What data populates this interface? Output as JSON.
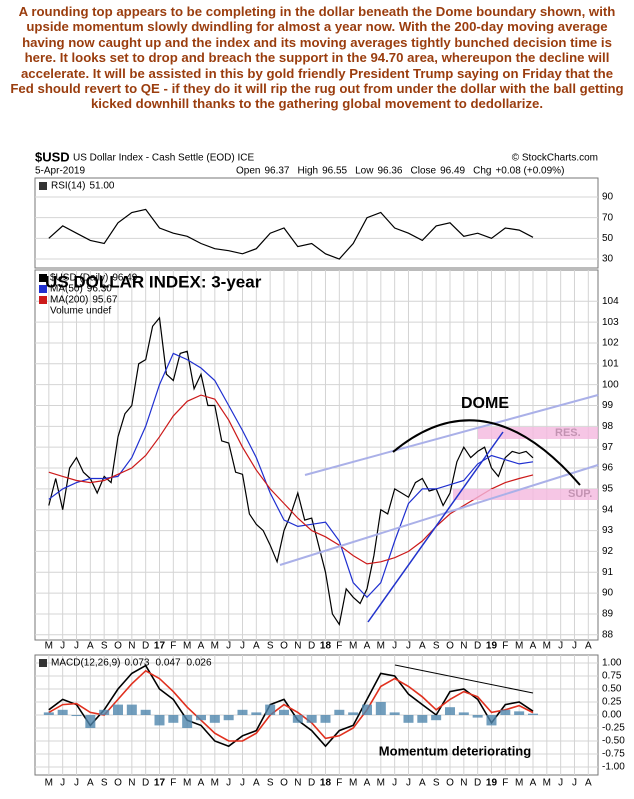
{
  "commentary": "A rounding top appears to be completing in the dollar beneath the Dome boundary shown, with upside momentum slowly dwindling for almost a year now. With the 200-day moving average having now caught up and the index and its moving averages tightly bunched decision time is here. It looks set to drop and breach the support in the 94.70 area, whereupon the decline will accelerate. It will be assisted in this by gold friendly President Trump saying on Friday that the Fed should revert to QE - if they do it will rip the rug out from under the dollar with the ball getting kicked downhill thanks to the gathering global movement to dedollarize.",
  "header": {
    "symbol": "$USD",
    "description": "US Dollar Index - Cash Settle (EOD) ICE",
    "source": "© StockCharts.com",
    "date": "5-Apr-2019",
    "quote": [
      {
        "label": "Open",
        "value": "96.37"
      },
      {
        "label": "High",
        "value": "96.55"
      },
      {
        "label": "Low",
        "value": "96.36"
      },
      {
        "label": "Close",
        "value": "96.49"
      },
      {
        "label": "Chg",
        "value": "+0.08 (+0.09%)"
      }
    ]
  },
  "chart_data": [
    {
      "type": "line",
      "legend_layout": "row",
      "grid": true,
      "xlim": [
        -1,
        39.7
      ],
      "ylim": [
        21.3,
        108.4
      ],
      "yticks": [
        90,
        70,
        50,
        30
      ],
      "series": [
        {
          "name": "RSI(14)",
          "latest": "51.00",
          "color": "#000000",
          "x": [
            0,
            1,
            2,
            3,
            4,
            5,
            6,
            7,
            8,
            9,
            10,
            11,
            12,
            13,
            14,
            15,
            16,
            17,
            18,
            19,
            20,
            21,
            22,
            23,
            24,
            25,
            26,
            27,
            28,
            29,
            30,
            31,
            32,
            33,
            34,
            35
          ],
          "values": [
            50,
            62,
            55,
            48,
            45,
            65,
            75,
            78,
            60,
            55,
            52,
            45,
            40,
            38,
            35,
            40,
            55,
            60,
            42,
            45,
            35,
            30,
            45,
            70,
            75,
            60,
            55,
            48,
            62,
            65,
            52,
            55,
            50,
            60,
            58,
            51
          ]
        }
      ]
    },
    {
      "type": "line",
      "legend_layout": "column",
      "grid": true,
      "title": "US DOLLAR INDEX: 3-year",
      "legend_note": "Volume undef",
      "annotations": {
        "dome": "DOME",
        "resistance": "RES.",
        "support": "SUP."
      },
      "xlim": [
        -1,
        39.7
      ],
      "ylim": [
        87.75,
        105.5
      ],
      "yticks": [
        88,
        89,
        90,
        91,
        92,
        93,
        94,
        95,
        96,
        97,
        98,
        99,
        100,
        101,
        102,
        103,
        104
      ],
      "xticks": [
        {
          "value": 0,
          "label": "M"
        },
        {
          "value": 1,
          "label": "J"
        },
        {
          "value": 2,
          "label": "J"
        },
        {
          "value": 3,
          "label": "A"
        },
        {
          "value": 4,
          "label": "S"
        },
        {
          "value": 5,
          "label": "O"
        },
        {
          "value": 6,
          "label": "N"
        },
        {
          "value": 7,
          "label": "D"
        },
        {
          "value": 8,
          "label": "17"
        },
        {
          "value": 9,
          "label": "F"
        },
        {
          "value": 10,
          "label": "M"
        },
        {
          "value": 11,
          "label": "A"
        },
        {
          "value": 12,
          "label": "M"
        },
        {
          "value": 13,
          "label": "J"
        },
        {
          "value": 14,
          "label": "J"
        },
        {
          "value": 15,
          "label": "A"
        },
        {
          "value": 16,
          "label": "S"
        },
        {
          "value": 17,
          "label": "O"
        },
        {
          "value": 18,
          "label": "N"
        },
        {
          "value": 19,
          "label": "D"
        },
        {
          "value": 20,
          "label": "18"
        },
        {
          "value": 21,
          "label": "F"
        },
        {
          "value": 22,
          "label": "M"
        },
        {
          "value": 23,
          "label": "A"
        },
        {
          "value": 24,
          "label": "M"
        },
        {
          "value": 25,
          "label": "J"
        },
        {
          "value": 26,
          "label": "J"
        },
        {
          "value": 27,
          "label": "A"
        },
        {
          "value": 28,
          "label": "S"
        },
        {
          "value": 29,
          "label": "O"
        },
        {
          "value": 30,
          "label": "N"
        },
        {
          "value": 31,
          "label": "D"
        },
        {
          "value": 32,
          "label": "19"
        },
        {
          "value": 33,
          "label": "F"
        },
        {
          "value": 34,
          "label": "M"
        },
        {
          "value": 35,
          "label": "A"
        },
        {
          "value": 36,
          "label": "M"
        },
        {
          "value": 37,
          "label": "J"
        },
        {
          "value": 38,
          "label": "J"
        },
        {
          "value": 39,
          "label": "A"
        }
      ],
      "series": [
        {
          "name": "$USD (Daily)",
          "latest": "96.49",
          "color": "#000000",
          "x": [
            0,
            0.5,
            1,
            1.5,
            2,
            2.5,
            3,
            3.5,
            4,
            4.5,
            5,
            5.5,
            6,
            6.5,
            7,
            7.5,
            8,
            8.5,
            9,
            9.5,
            10,
            10.5,
            11,
            11.5,
            12,
            12.5,
            13,
            13.5,
            14,
            14.5,
            15,
            15.5,
            16,
            16.5,
            17,
            17.5,
            18,
            18.5,
            19,
            19.5,
            20,
            20.5,
            21,
            21.5,
            22,
            22.5,
            23,
            23.5,
            24,
            24.5,
            25,
            25.5,
            26,
            26.5,
            27,
            27.5,
            28,
            28.5,
            29,
            29.5,
            30,
            30.5,
            31,
            31.5,
            32,
            32.5,
            33,
            33.5,
            34,
            34.5,
            35
          ],
          "values": [
            94.2,
            95.5,
            94.0,
            96.0,
            96.5,
            95.8,
            95.5,
            94.8,
            95.6,
            95.3,
            97.5,
            98.6,
            99.0,
            101.0,
            101.2,
            102.8,
            103.2,
            100.5,
            100.2,
            101.5,
            101.6,
            99.8,
            100.5,
            99.0,
            99.0,
            97.3,
            97.2,
            95.8,
            95.7,
            93.8,
            93.3,
            93.0,
            92.3,
            91.5,
            93.0,
            93.8,
            94.8,
            93.5,
            93.6,
            92.3,
            91.0,
            89.0,
            88.5,
            90.2,
            89.8,
            89.5,
            90.2,
            91.8,
            94.0,
            93.8,
            95.0,
            94.8,
            94.6,
            95.3,
            95.5,
            94.9,
            95.0,
            94.2,
            94.8,
            96.3,
            97.0,
            96.5,
            96.8,
            97.0,
            96.0,
            95.6,
            96.5,
            96.8,
            96.7,
            96.8,
            96.49
          ]
        },
        {
          "name": "MA(50)",
          "latest": "96.30",
          "color": "#1f2fd0",
          "x": [
            0,
            1,
            2,
            3,
            4,
            5,
            6,
            7,
            8,
            9,
            10,
            11,
            12,
            13,
            14,
            15,
            16,
            17,
            18,
            19,
            20,
            21,
            22,
            23,
            24,
            25,
            26,
            27,
            28,
            29,
            30,
            31,
            32,
            33,
            34,
            35
          ],
          "values": [
            94.5,
            95,
            95.3,
            95.5,
            95.5,
            95.6,
            96.5,
            98,
            100,
            101.5,
            101.2,
            100.8,
            100.2,
            99,
            97.8,
            96.5,
            94.8,
            93.5,
            93.2,
            93.3,
            93.4,
            92.5,
            90.5,
            89.8,
            90.5,
            92.5,
            94.3,
            95,
            95,
            95.2,
            95.4,
            96.2,
            96.6,
            96.4,
            96.2,
            96.3
          ]
        },
        {
          "name": "MA(200)",
          "latest": "95.67",
          "color": "#cc1a1a",
          "x": [
            0,
            1,
            2,
            3,
            4,
            5,
            6,
            7,
            8,
            9,
            10,
            11,
            12,
            13,
            14,
            15,
            16,
            17,
            18,
            19,
            20,
            21,
            22,
            23,
            24,
            25,
            26,
            27,
            28,
            29,
            30,
            31,
            32,
            33,
            34,
            35
          ],
          "values": [
            95.8,
            95.6,
            95.4,
            95.3,
            95.4,
            95.7,
            96,
            96.6,
            97.5,
            98.5,
            99.2,
            99.5,
            99.3,
            98.3,
            97,
            95.9,
            95,
            94.3,
            93.6,
            93,
            92.7,
            92.3,
            91.8,
            91.4,
            91.5,
            91.7,
            92,
            92.5,
            93.2,
            93.8,
            94.2,
            94.6,
            95,
            95.3,
            95.5,
            95.67
          ]
        }
      ]
    },
    {
      "type": "line",
      "legend_layout": "row",
      "grid": true,
      "annotation": "Momentum deteriorating",
      "xlim": [
        -1,
        39.7
      ],
      "ylim": [
        -1.154,
        1.154
      ],
      "yticks": [
        {
          "value": 1,
          "label": "1.00"
        },
        {
          "value": 0.75,
          "label": "0.75"
        },
        {
          "value": 0.5,
          "label": "0.50"
        },
        {
          "value": 0.25,
          "label": "0.25"
        },
        {
          "value": 0,
          "label": "0.00"
        },
        {
          "value": -0.25,
          "label": "-0.25"
        },
        {
          "value": -0.5,
          "label": "-0.50"
        },
        {
          "value": -0.75,
          "label": "-0.75"
        },
        {
          "value": -1,
          "label": "-1.00"
        }
      ],
      "series": [
        {
          "name": "MACD(12,26,9)",
          "latest": "0.073",
          "color": "#000000",
          "style": "line",
          "x": [
            0,
            1,
            2,
            3,
            4,
            5,
            6,
            7,
            8,
            9,
            10,
            11,
            12,
            13,
            14,
            15,
            16,
            17,
            18,
            19,
            20,
            21,
            22,
            23,
            24,
            25,
            26,
            27,
            28,
            29,
            30,
            31,
            32,
            33,
            34,
            35
          ],
          "values": [
            0.1,
            0.3,
            0.2,
            -0.2,
            0.1,
            0.5,
            0.8,
            0.95,
            0.5,
            0.3,
            -0.1,
            -0.2,
            -0.5,
            -0.6,
            -0.4,
            -0.3,
            0.2,
            0.3,
            -0.1,
            -0.3,
            -0.6,
            -0.3,
            -0.2,
            0.3,
            0.8,
            0.75,
            0.4,
            0.2,
            0.0,
            0.45,
            0.5,
            0.3,
            -0.15,
            0.2,
            0.25,
            0.073
          ]
        },
        {
          "latest": "0.047",
          "color": "#e0301e",
          "style": "line",
          "x": [
            0,
            1,
            2,
            3,
            4,
            5,
            6,
            7,
            8,
            9,
            10,
            11,
            12,
            13,
            14,
            15,
            16,
            17,
            18,
            19,
            20,
            21,
            22,
            23,
            24,
            25,
            26,
            27,
            28,
            29,
            30,
            31,
            32,
            33,
            34,
            35
          ],
          "values": [
            0.05,
            0.2,
            0.22,
            0.05,
            0.0,
            0.3,
            0.6,
            0.85,
            0.7,
            0.45,
            0.15,
            -0.1,
            -0.35,
            -0.5,
            -0.5,
            -0.35,
            0.0,
            0.2,
            0.05,
            -0.15,
            -0.45,
            -0.4,
            -0.25,
            0.1,
            0.55,
            0.7,
            0.55,
            0.35,
            0.1,
            0.3,
            0.45,
            0.35,
            0.05,
            0.1,
            0.18,
            0.047
          ]
        },
        {
          "latest": "0.026",
          "color": "#4f86ad",
          "style": "bar",
          "x": [
            0,
            1,
            2,
            3,
            4,
            5,
            6,
            7,
            8,
            9,
            10,
            11,
            12,
            13,
            14,
            15,
            16,
            17,
            18,
            19,
            20,
            21,
            22,
            23,
            24,
            25,
            26,
            27,
            28,
            29,
            30,
            31,
            32,
            33,
            34,
            35
          ],
          "values": [
            0.05,
            0.1,
            -0.02,
            -0.25,
            0.1,
            0.2,
            0.2,
            0.1,
            -0.2,
            -0.15,
            -0.25,
            -0.1,
            -0.15,
            -0.1,
            0.1,
            0.05,
            0.2,
            0.1,
            -0.15,
            -0.15,
            -0.15,
            0.1,
            0.05,
            0.2,
            0.25,
            0.05,
            -0.15,
            -0.15,
            -0.1,
            0.15,
            0.05,
            -0.05,
            -0.2,
            0.1,
            0.07,
            0.026
          ]
        }
      ]
    }
  ]
}
